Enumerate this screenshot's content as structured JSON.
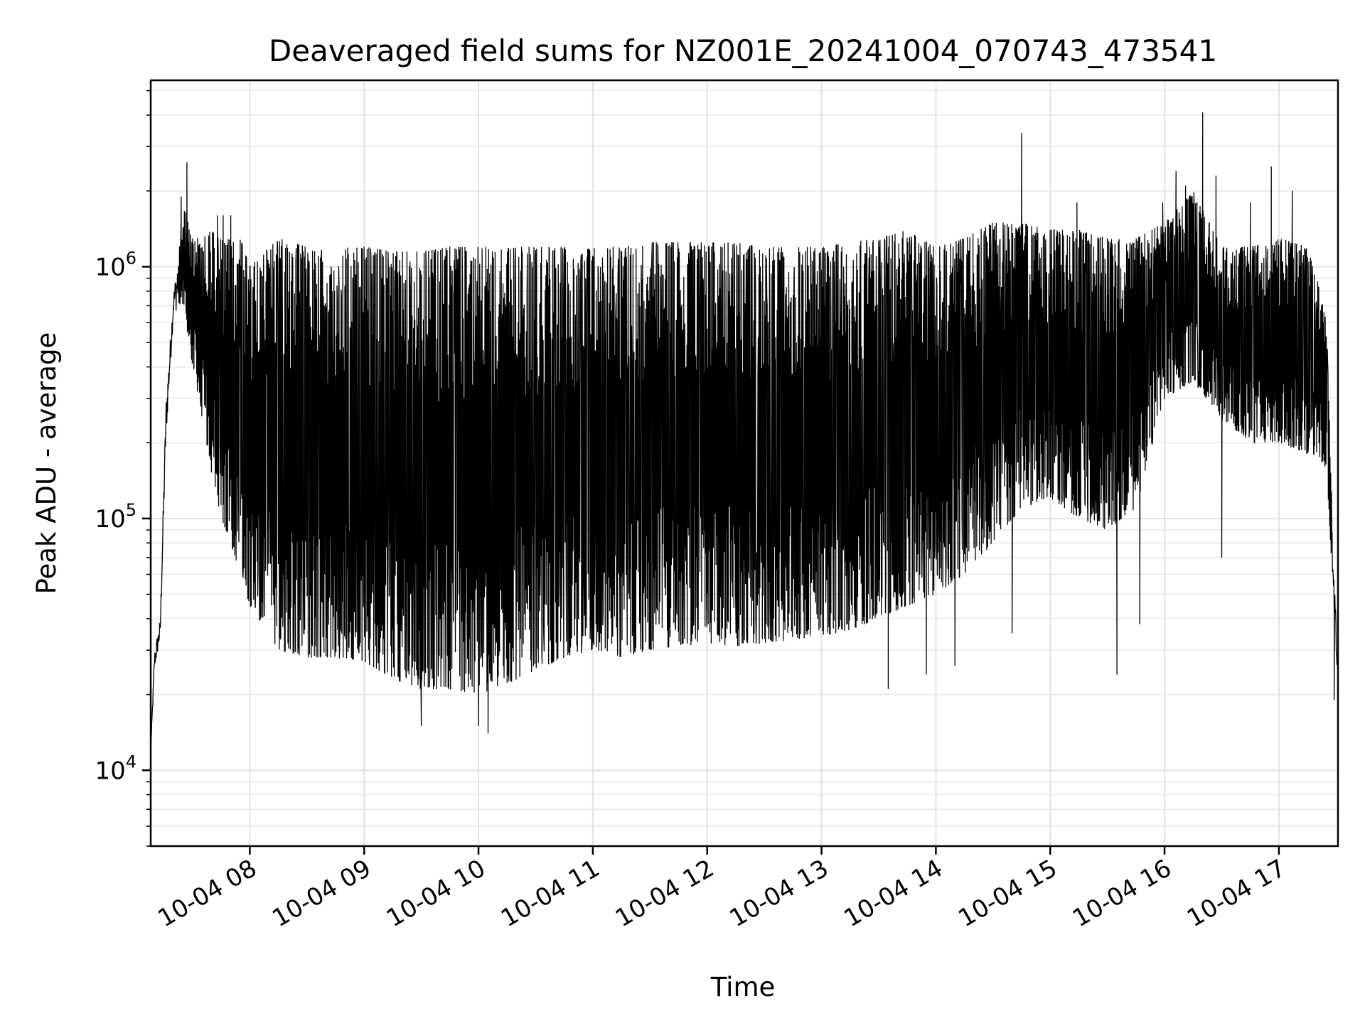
{
  "chart_data": {
    "type": "line",
    "title": "Deaveraged field sums for NZ001E_20241004_070743_473541",
    "xlabel": "Time",
    "ylabel": "Peak ADU - average",
    "yscale": "log",
    "ylim": [
      5000,
      5500000
    ],
    "xlim": [
      "2024-10-04 07:08",
      "2024-10-04 17:31"
    ],
    "grid": true,
    "legend": "none",
    "line_color": "#000000",
    "y_ticks": [
      {
        "base": "10",
        "exp": "4",
        "value": 10000
      },
      {
        "base": "10",
        "exp": "5",
        "value": 100000
      },
      {
        "base": "10",
        "exp": "6",
        "value": 1000000
      }
    ],
    "x_ticks": [
      {
        "label": "10-04 08",
        "time": "2024-10-04 08:00"
      },
      {
        "label": "10-04 09",
        "time": "2024-10-04 09:00"
      },
      {
        "label": "10-04 10",
        "time": "2024-10-04 10:00"
      },
      {
        "label": "10-04 11",
        "time": "2024-10-04 11:00"
      },
      {
        "label": "10-04 12",
        "time": "2024-10-04 12:00"
      },
      {
        "label": "10-04 13",
        "time": "2024-10-04 13:00"
      },
      {
        "label": "10-04 14",
        "time": "2024-10-04 14:00"
      },
      {
        "label": "10-04 15",
        "time": "2024-10-04 15:00"
      },
      {
        "label": "10-04 16",
        "time": "2024-10-04 16:00"
      },
      {
        "label": "10-04 17",
        "time": "2024-10-04 17:00"
      }
    ],
    "series": [
      {
        "upper_envelope": {
          "x": [
            "2024-10-04 07:08",
            "2024-10-04 07:10",
            "2024-10-04 07:13",
            "2024-10-04 07:16",
            "2024-10-04 07:20",
            "2024-10-04 07:25",
            "2024-10-04 07:30",
            "2024-10-04 07:35",
            "2024-10-04 07:40",
            "2024-10-04 07:45",
            "2024-10-04 07:50",
            "2024-10-04 07:55",
            "2024-10-04 08:00",
            "2024-10-04 08:15",
            "2024-10-04 08:30",
            "2024-10-04 08:45",
            "2024-10-04 09:00",
            "2024-10-04 09:15",
            "2024-10-04 09:30",
            "2024-10-04 09:45",
            "2024-10-04 10:00",
            "2024-10-04 10:15",
            "2024-10-04 10:30",
            "2024-10-04 10:45",
            "2024-10-04 11:00",
            "2024-10-04 11:15",
            "2024-10-04 11:30",
            "2024-10-04 11:45",
            "2024-10-04 12:00",
            "2024-10-04 12:15",
            "2024-10-04 12:30",
            "2024-10-04 12:45",
            "2024-10-04 13:00",
            "2024-10-04 13:15",
            "2024-10-04 13:30",
            "2024-10-04 13:45",
            "2024-10-04 14:00",
            "2024-10-04 14:15",
            "2024-10-04 14:30",
            "2024-10-04 14:45",
            "2024-10-04 15:00",
            "2024-10-04 15:15",
            "2024-10-04 15:30",
            "2024-10-04 15:45",
            "2024-10-04 16:00",
            "2024-10-04 16:15",
            "2024-10-04 16:30",
            "2024-10-04 16:45",
            "2024-10-04 17:00",
            "2024-10-04 17:15",
            "2024-10-04 17:20",
            "2024-10-04 17:25",
            "2024-10-04 17:28",
            "2024-10-04 17:31"
          ],
          "y": [
            12000,
            30000,
            40000,
            300000,
            800000,
            1800000,
            1300000,
            1300000,
            1400000,
            1300000,
            1300000,
            1300000,
            1000000,
            1300000,
            1200000,
            1200000,
            1200000,
            1150000,
            1150000,
            1200000,
            1200000,
            1200000,
            1200000,
            1200000,
            1200000,
            1200000,
            1250000,
            1250000,
            1250000,
            1250000,
            1200000,
            1200000,
            1200000,
            1250000,
            1300000,
            1400000,
            1200000,
            1300000,
            1500000,
            1500000,
            1400000,
            1400000,
            1300000,
            1300000,
            1500000,
            2000000,
            1200000,
            1200000,
            1300000,
            1200000,
            900000,
            600000,
            100000,
            25000
          ]
        },
        "lower_envelope": {
          "x": [
            "2024-10-04 07:08",
            "2024-10-04 07:10",
            "2024-10-04 07:13",
            "2024-10-04 07:16",
            "2024-10-04 07:20",
            "2024-10-04 07:25",
            "2024-10-04 07:30",
            "2024-10-04 07:35",
            "2024-10-04 07:40",
            "2024-10-04 07:45",
            "2024-10-04 07:50",
            "2024-10-04 07:55",
            "2024-10-04 08:00",
            "2024-10-04 08:15",
            "2024-10-04 08:30",
            "2024-10-04 08:45",
            "2024-10-04 09:00",
            "2024-10-04 09:15",
            "2024-10-04 09:30",
            "2024-10-04 09:45",
            "2024-10-04 10:00",
            "2024-10-04 10:15",
            "2024-10-04 10:30",
            "2024-10-04 10:45",
            "2024-10-04 11:00",
            "2024-10-04 11:15",
            "2024-10-04 11:30",
            "2024-10-04 11:45",
            "2024-10-04 12:00",
            "2024-10-04 12:15",
            "2024-10-04 12:30",
            "2024-10-04 12:45",
            "2024-10-04 13:00",
            "2024-10-04 13:15",
            "2024-10-04 13:30",
            "2024-10-04 13:45",
            "2024-10-04 14:00",
            "2024-10-04 14:15",
            "2024-10-04 14:30",
            "2024-10-04 14:45",
            "2024-10-04 15:00",
            "2024-10-04 15:15",
            "2024-10-04 15:30",
            "2024-10-04 15:45",
            "2024-10-04 16:00",
            "2024-10-04 16:15",
            "2024-10-04 16:30",
            "2024-10-04 16:45",
            "2024-10-04 17:00",
            "2024-10-04 17:15",
            "2024-10-04 17:20",
            "2024-10-04 17:25",
            "2024-10-04 17:28",
            "2024-10-04 17:31"
          ],
          "y": [
            12000,
            25000,
            33000,
            200000,
            650000,
            700000,
            400000,
            250000,
            150000,
            100000,
            80000,
            60000,
            45000,
            30000,
            28000,
            28000,
            27000,
            23000,
            21000,
            21000,
            20000,
            22000,
            25000,
            28000,
            30000,
            28000,
            30000,
            31000,
            32000,
            31000,
            32000,
            33000,
            34000,
            36000,
            40000,
            45000,
            50000,
            60000,
            80000,
            110000,
            120000,
            100000,
            90000,
            110000,
            300000,
            350000,
            250000,
            200000,
            200000,
            180000,
            180000,
            150000,
            60000,
            20000
          ]
        },
        "spikes": {
          "x": [
            "2024-10-04 07:24",
            "2024-10-04 07:27",
            "2024-10-04 07:43",
            "2024-10-04 07:46",
            "2024-10-04 07:50",
            "2024-10-04 14:45",
            "2024-10-04 15:14",
            "2024-10-04 15:59",
            "2024-10-04 16:06",
            "2024-10-04 16:11",
            "2024-10-04 16:20",
            "2024-10-04 16:27",
            "2024-10-04 16:45",
            "2024-10-04 16:56",
            "2024-10-04 17:07"
          ],
          "y": [
            1900000,
            2600000,
            1600000,
            1600000,
            1600000,
            3400000,
            1800000,
            1800000,
            2400000,
            2100000,
            4100000,
            2300000,
            1800000,
            2500000,
            2000000
          ]
        },
        "dips": {
          "x": [
            "2024-10-04 09:30",
            "2024-10-04 10:00",
            "2024-10-04 10:05",
            "2024-10-04 13:35",
            "2024-10-04 13:55",
            "2024-10-04 14:10",
            "2024-10-04 14:40",
            "2024-10-04 15:35",
            "2024-10-04 15:47",
            "2024-10-04 16:30",
            "2024-10-04 17:29"
          ],
          "y": [
            15000,
            15000,
            14000,
            21000,
            24000,
            26000,
            35000,
            24000,
            38000,
            70000,
            19000
          ]
        }
      }
    ]
  }
}
